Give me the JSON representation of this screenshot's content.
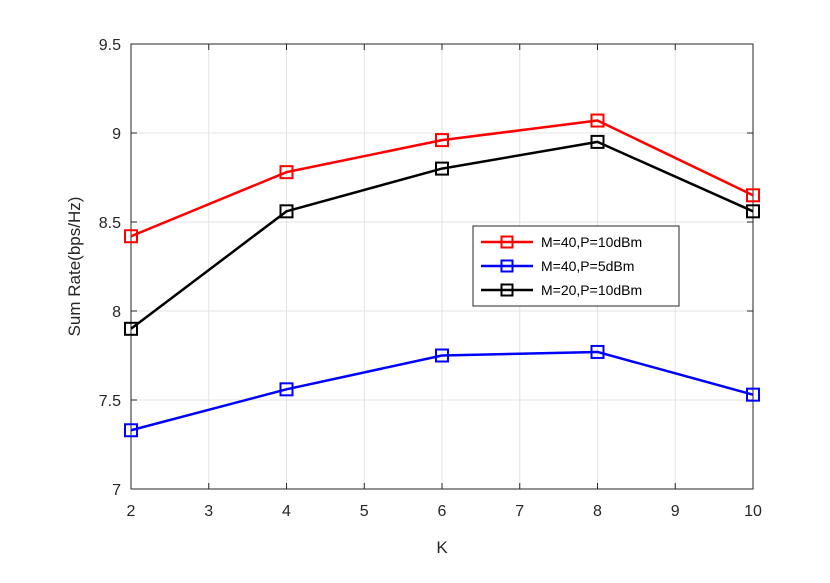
{
  "chart_data": {
    "type": "line",
    "title": "",
    "xlabel": "K",
    "ylabel": "Sum Rate(bps/Hz)",
    "xlim": [
      2,
      10
    ],
    "ylim": [
      7,
      9.5
    ],
    "xticks": [
      2,
      3,
      4,
      5,
      6,
      7,
      8,
      9,
      10
    ],
    "yticks": [
      7,
      7.5,
      8,
      8.5,
      9,
      9.5
    ],
    "ytick_labels": [
      "7",
      "7.5",
      "8",
      "8.5",
      "9",
      "9.5"
    ],
    "grid": true,
    "legend_position": "middle-right",
    "x": [
      2,
      4,
      6,
      8,
      10
    ],
    "series": [
      {
        "name": "M=40,P=10dBm",
        "color": "#ff0000",
        "marker": "square",
        "values": [
          8.42,
          8.78,
          8.96,
          9.07,
          8.65
        ]
      },
      {
        "name": "M=40,P=5dBm",
        "color": "#0000ff",
        "marker": "square",
        "values": [
          7.33,
          7.56,
          7.75,
          7.77,
          7.53
        ]
      },
      {
        "name": "M=20,P=10dBm",
        "color": "#000000",
        "marker": "square",
        "values": [
          7.9,
          8.56,
          8.8,
          8.95,
          8.56
        ]
      }
    ]
  }
}
